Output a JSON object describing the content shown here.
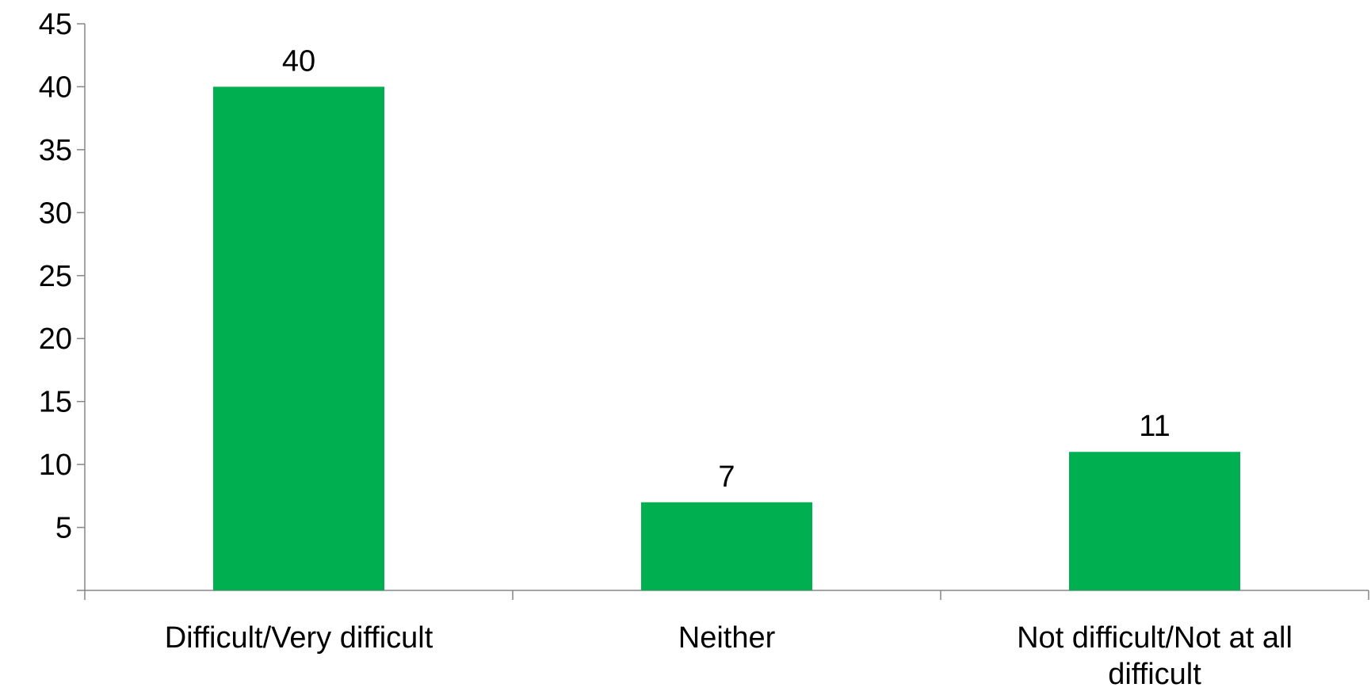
{
  "chart_data": {
    "type": "bar",
    "categories": [
      [
        "Difficult/Very difficult"
      ],
      [
        "Neither"
      ],
      [
        "Not difficult/Not at all",
        "difficult"
      ]
    ],
    "values": [
      40,
      7,
      11
    ],
    "data_labels": [
      "40",
      "7",
      "11"
    ],
    "y_ticks": [
      5,
      10,
      15,
      20,
      25,
      30,
      35,
      40,
      45
    ],
    "ylim": [
      0,
      45
    ],
    "title": "",
    "xlabel": "",
    "ylabel": "",
    "grid": false,
    "legend": "none",
    "bar_color": "#00B050",
    "axis_color": "#868686"
  }
}
